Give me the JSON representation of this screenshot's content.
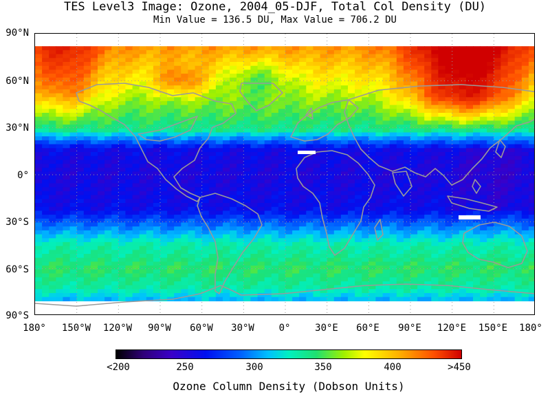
{
  "title": "TES Level3 Image: Ozone, 2004_05-DJF, Total Col Density (DU)",
  "subtitle": "Min Value =  136.5 DU,   Max Value =  706.2 DU",
  "map": {
    "projection": "equirectangular",
    "lon_range": [
      -180,
      180
    ],
    "lat_range": [
      -90,
      90
    ],
    "data_lat_range": [
      -80,
      82
    ],
    "lat_labels": [
      "90°N",
      "60°N",
      "30°N",
      "0°",
      "30°S",
      "60°S",
      "90°S"
    ],
    "lon_labels": [
      "180°",
      "150°W",
      "120°W",
      "90°W",
      "60°W",
      "30°W",
      "0°",
      "30°E",
      "60°E",
      "90°E",
      "120°E",
      "150°E",
      "180°"
    ],
    "coastline_color": "#9a9a9a",
    "grid": true
  },
  "colorbar": {
    "labels": [
      "<200",
      "250",
      "300",
      "350",
      "400",
      ">450"
    ],
    "title": "Ozone Column Density (Dobson Units)"
  },
  "colors": {
    "low": "#000000",
    "mid": "#00f0c0",
    "high": "#d00000"
  }
}
